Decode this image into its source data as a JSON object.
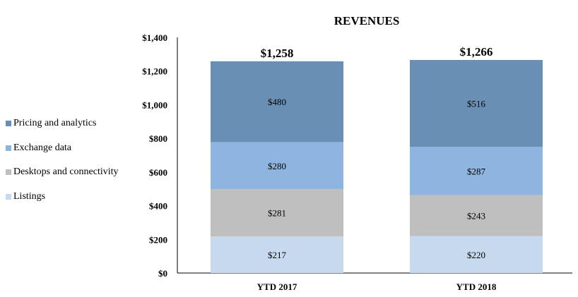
{
  "chart_data": {
    "type": "bar",
    "stacked": true,
    "title": "REVENUES",
    "xlabel": "",
    "ylabel": "",
    "ylim": [
      0,
      1400
    ],
    "yticks": [
      "$0",
      "$200",
      "$400",
      "$600",
      "$800",
      "$1,000",
      "$1,200",
      "$1,400"
    ],
    "ytick_values": [
      0,
      200,
      400,
      600,
      800,
      1000,
      1200,
      1400
    ],
    "categories": [
      "YTD 2017",
      "YTD 2018"
    ],
    "totals": [
      1258,
      1266
    ],
    "total_labels": [
      "$1,258",
      "$1,266"
    ],
    "legend_position": "left",
    "series": [
      {
        "name": "Listings",
        "color": "#c6d9ef",
        "values": [
          217,
          220
        ],
        "labels": [
          "$217",
          "$220"
        ]
      },
      {
        "name": "Desktops and connectivity",
        "color": "#bfbfbf",
        "values": [
          281,
          243
        ],
        "labels": [
          "$281",
          "$243"
        ]
      },
      {
        "name": "Exchange data",
        "color": "#8eb4e0",
        "values": [
          280,
          287
        ],
        "labels": [
          "$280",
          "$287"
        ]
      },
      {
        "name": "Pricing and analytics",
        "color": "#6a8fb4",
        "values": [
          480,
          516
        ],
        "labels": [
          "$480",
          "$516"
        ]
      }
    ]
  }
}
